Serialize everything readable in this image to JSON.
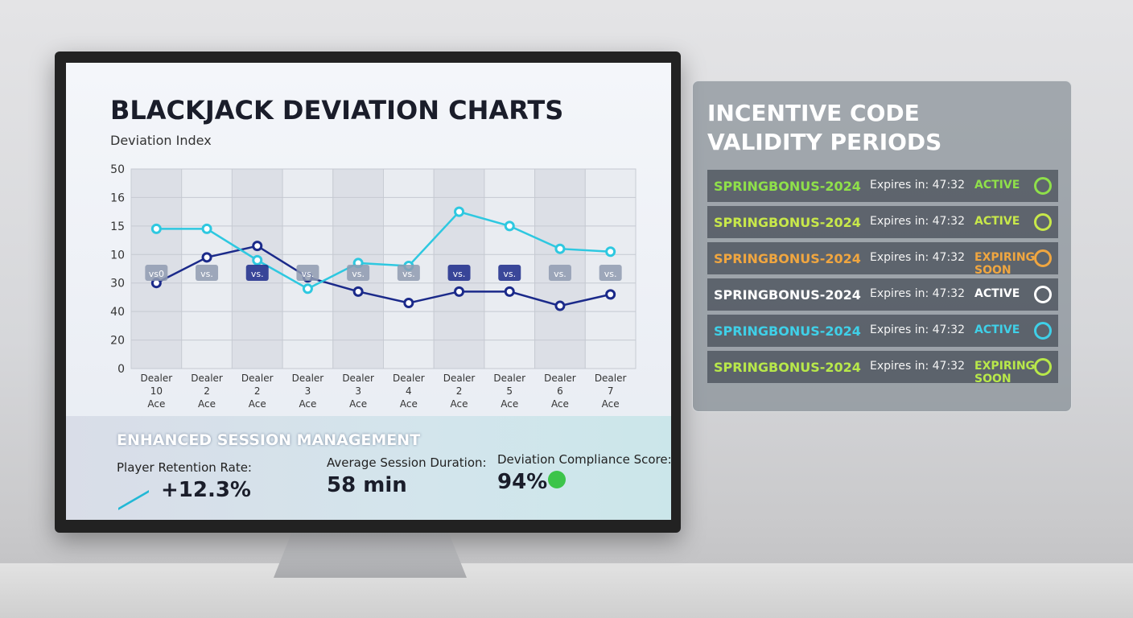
{
  "chart_data": {
    "type": "line",
    "title": "BLACKJACK DEVIATION CHARTS",
    "subtitle": "Deviation Index",
    "categories": [
      "Dealer 10 Ace",
      "Dealer 2 Ace",
      "Dealer 2 Ace",
      "Dealer 3 Ace",
      "Dealer 3 Ace",
      "Dealer 4 Ace",
      "Dealer 2 Ace",
      "Dealer 5 Ace",
      "Dealer 6 Ace",
      "Dealer 7 Ace"
    ],
    "series": [
      {
        "color": "#1b2a8a",
        "values": [
          3.0,
          3.9,
          4.3,
          3.2,
          2.7,
          2.3,
          2.7,
          2.7,
          2.2,
          2.6
        ]
      },
      {
        "color": "#2ec8e0",
        "values": [
          4.9,
          4.9,
          3.8,
          2.8,
          3.7,
          3.6,
          5.5,
          5.0,
          4.2,
          4.1
        ]
      }
    ],
    "annotations": [
      "vs0",
      "vs.",
      "vs.",
      "vs.",
      "vs.",
      "vs.",
      "vs.",
      "vs.",
      "vs.",
      "vs."
    ],
    "ylim": [
      0,
      7
    ],
    "yticks": [
      {
        "value": 0,
        "label": "0"
      },
      {
        "value": 1,
        "label": "20"
      },
      {
        "value": 2,
        "label": "40"
      },
      {
        "value": 3,
        "label": "30"
      },
      {
        "value": 4,
        "label": "10"
      },
      {
        "value": 5,
        "label": "15"
      },
      {
        "value": 6,
        "label": "16"
      },
      {
        "value": 7,
        "label": "50"
      }
    ],
    "grid": true
  },
  "session": {
    "title": "ENHANCED SESSION MANAGEMENT",
    "metrics": [
      {
        "label": "Player Retention Rate:",
        "value": "+12.3%"
      },
      {
        "label": "Average Session Duration:",
        "value": "58 min"
      },
      {
        "label": "Deviation Compliance Score:",
        "value": "94%"
      }
    ]
  },
  "panel": {
    "title": "INCENTIVE CODE VALIDITY PERIODS",
    "rows": [
      {
        "code": "SPRINGBONUS-2024",
        "expires": "Expires in: 47:32",
        "status": "ACTIVE",
        "color": "#8fe04a"
      },
      {
        "code": "SPRINGBONUS-2024",
        "expires": "Expires in: 47:32",
        "status": "ACTIVE",
        "color": "#c8e84a"
      },
      {
        "code": "SPRINGBONUS-2024",
        "expires": "Expires in: 47:32",
        "status": "EXPIRING SOON",
        "color": "#f0a640"
      },
      {
        "code": "SPRINGBONUS-2024",
        "expires": "Expires in: 47:32",
        "status": "ACTIVE",
        "color": "#ffffff"
      },
      {
        "code": "SPRINGBONUS-2024",
        "expires": "Expires in: 47:32",
        "status": "ACTIVE",
        "color": "#3fd0e8"
      },
      {
        "code": "SPRINGBONUS-2024",
        "expires": "Expires in: 47:32",
        "status": "EXPIRING SOON",
        "color": "#b8e84a"
      }
    ]
  }
}
